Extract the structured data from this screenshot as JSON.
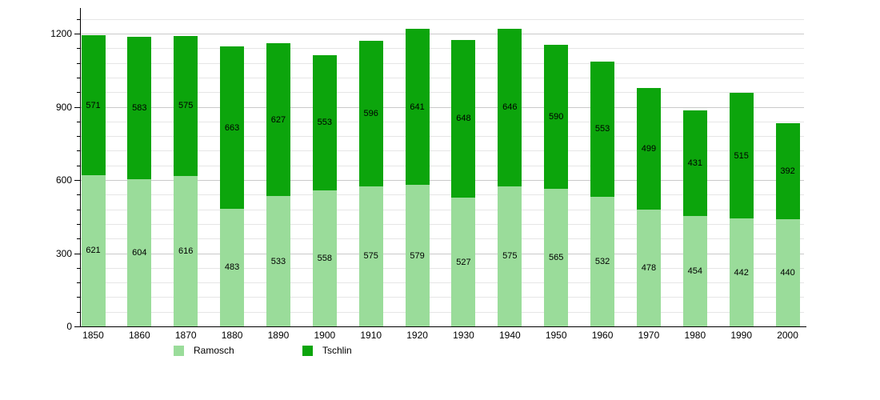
{
  "chart_data": {
    "type": "bar",
    "stacked": true,
    "title": "",
    "xlabel": "",
    "ylabel": "",
    "categories": [
      "1850",
      "1860",
      "1870",
      "1880",
      "1890",
      "1900",
      "1910",
      "1920",
      "1930",
      "1940",
      "1950",
      "1960",
      "1970",
      "1980",
      "1990",
      "2000"
    ],
    "series": [
      {
        "name": "Ramosch",
        "color": "#9ADC9A",
        "values": [
          621,
          604,
          616,
          483,
          533,
          558,
          575,
          579,
          527,
          575,
          565,
          532,
          478,
          454,
          442,
          440
        ]
      },
      {
        "name": "Tschlin",
        "color": "#0CA50C",
        "values": [
          571,
          583,
          575,
          663,
          627,
          553,
          596,
          641,
          648,
          646,
          590,
          553,
          499,
          431,
          515,
          392
        ]
      }
    ],
    "y_axis": {
      "min": 0,
      "max": 1300,
      "major_ticks": [
        0,
        300,
        600,
        900,
        1200
      ],
      "minor_step": 60,
      "minor_max": 1260
    },
    "grid": true,
    "legend_position": "bottom",
    "colors": {
      "axis": "#000000",
      "major_gridline": "#c9c9c9",
      "minor_gridline": "#e6e6e6",
      "label_text": "#000000"
    }
  }
}
